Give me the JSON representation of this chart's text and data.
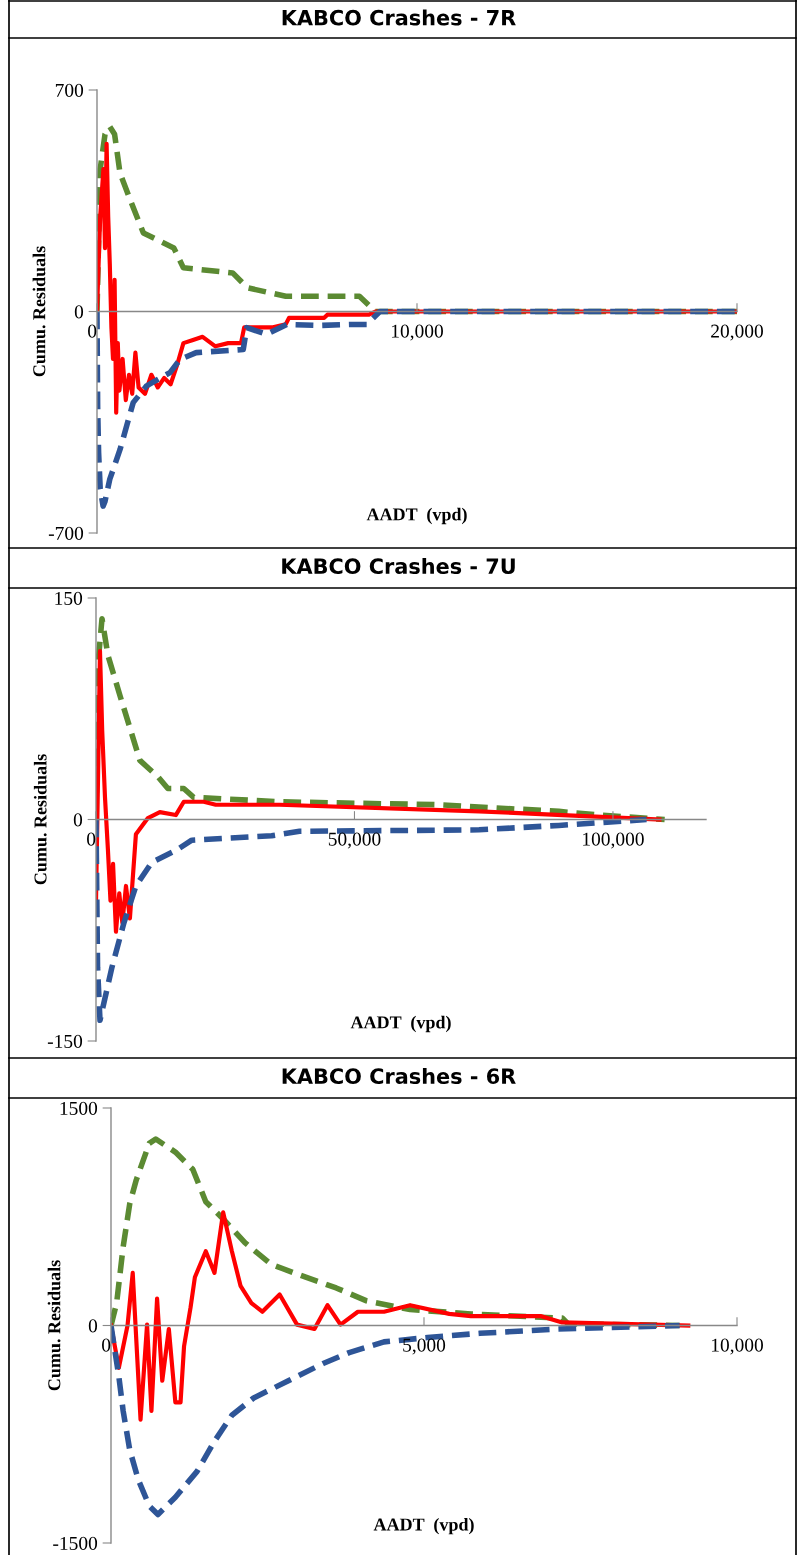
{
  "chart_data": [
    {
      "type": "line",
      "title": "KABCO Crashes - 7R",
      "xlabel": "AADT  (vpd)",
      "ylabel": "Cumu. Residuals",
      "xlim": [
        0,
        20000
      ],
      "ylim": [
        -700,
        700
      ],
      "xticks": [
        0,
        {
          "value": 10000,
          "label": "10,000"
        },
        {
          "value": 20000,
          "label": "20,000"
        }
      ],
      "yticks": [
        -700,
        0,
        700
      ],
      "grid": false,
      "series": [
        {
          "color": "#5b8a32",
          "line_style": "dashed",
          "x": [
            0,
            100,
            250,
            400,
            550,
            720,
            1080,
            1450,
            2400,
            2700,
            4240,
            4700,
            5900,
            8200,
            8700,
            20000
          ],
          "values": [
            0,
            450,
            560,
            584,
            560,
            437,
            342,
            248,
            201,
            138,
            122,
            75,
            48,
            48,
            0,
            0
          ]
        },
        {
          "color": "#ff0000",
          "line_style": "solid",
          "x": [
            0,
            100,
            200,
            250,
            300,
            350,
            400,
            450,
            500,
            550,
            600,
            650,
            700,
            800,
            900,
            1000,
            1100,
            1200,
            1300,
            1500,
            1700,
            1900,
            2100,
            2300,
            2500,
            2700,
            3000,
            3300,
            3700,
            4100,
            4500,
            4600,
            5000,
            5500,
            5900,
            6000,
            6500,
            7100,
            7200,
            8000,
            8500,
            8700,
            20000
          ],
          "values": [
            0,
            300,
            450,
            200,
            530,
            300,
            150,
            -50,
            -150,
            100,
            -320,
            -100,
            -250,
            -150,
            -280,
            -200,
            -260,
            -130,
            -240,
            -260,
            -200,
            -240,
            -210,
            -230,
            -170,
            -100,
            -90,
            -80,
            -110,
            -100,
            -100,
            -50,
            -50,
            -50,
            -40,
            -20,
            -20,
            -20,
            -10,
            -10,
            -10,
            0,
            0
          ]
        },
        {
          "color": "#2e5597",
          "line_style": "dashed",
          "x": [
            0,
            20,
            50,
            100,
            190,
            250,
            400,
            720,
            1130,
            1550,
            2280,
            2600,
            3100,
            4570,
            4680,
            5300,
            5930,
            6970,
            7900,
            8430,
            8840,
            20000
          ],
          "values": [
            0,
            -300,
            -445,
            -560,
            -615,
            -600,
            -530,
            -436,
            -288,
            -235,
            -193,
            -151,
            -130,
            -120,
            -51,
            -72,
            -41,
            -44,
            -41,
            -41,
            0,
            0
          ]
        }
      ]
    },
    {
      "type": "line",
      "title": "KABCO Crashes - 7U",
      "xlabel": "AADT  (vpd)",
      "ylabel": "Cumu. Residuals",
      "xlim": [
        0,
        118000
      ],
      "ylim": [
        -150,
        150
      ],
      "xticks": [
        0,
        {
          "value": 50000,
          "label": "50,000"
        },
        {
          "value": 100000,
          "label": "100,000"
        }
      ],
      "yticks": [
        -150,
        0,
        150
      ],
      "grid": false,
      "series": [
        {
          "color": "#5b8a32",
          "line_style": "dashed",
          "x": [
            0,
            500,
            1160,
            2320,
            4630,
            6560,
            8490,
            11970,
            13900,
            16980,
            18900,
            35500,
            66400,
            89550,
            97270,
            110000
          ],
          "values": [
            0,
            110,
            136,
            111,
            84,
            62,
            40,
            29,
            21,
            21,
            15,
            12,
            10,
            5.5,
            3,
            0
          ]
        },
        {
          "color": "#ff0000",
          "line_style": "solid",
          "x": [
            0,
            400,
            770,
            1200,
            1740,
            2300,
            2800,
            3300,
            3860,
            4500,
            5100,
            5800,
            6560,
            7720,
            10040,
            12350,
            15440,
            16980,
            20840,
            23160,
            35500,
            74100,
            109000
          ],
          "values": [
            -56,
            30,
            114,
            60,
            15,
            -20,
            -55,
            -30,
            -76,
            -50,
            -70,
            -45,
            -67,
            -10,
            1,
            5,
            3,
            12,
            12,
            10,
            10,
            5.5,
            0
          ]
        },
        {
          "color": "#2e5597",
          "line_style": "dashed",
          "x": [
            0,
            300,
            770,
            3090,
            5400,
            7720,
            10800,
            15440,
            18530,
            33970,
            39370,
            74100,
            89550,
            106500
          ],
          "values": [
            0,
            -100,
            -136,
            -100,
            -70,
            -45,
            -29,
            -21,
            -14,
            -11,
            -8,
            -7,
            -4,
            0
          ]
        }
      ]
    },
    {
      "type": "line",
      "title": "KABCO Crashes - 6R",
      "xlabel": "AADT  (vpd)",
      "ylabel": "Cumu. Residuals",
      "xlim": [
        0,
        10000
      ],
      "ylim": [
        -1500,
        1500
      ],
      "xticks": [
        0,
        {
          "value": 5000,
          "label": "5,000"
        },
        {
          "value": 10000,
          "label": "10,000"
        }
      ],
      "yticks": [
        -1500,
        0,
        1500
      ],
      "grid": false,
      "series": [
        {
          "color": "#5b8a32",
          "line_style": "dashed",
          "x": [
            0,
            90,
            194,
            299,
            403,
            611,
            715,
            1028,
            1306,
            1514,
            1792,
            2139,
            2555,
            3111,
            3597,
            4083,
            4778,
            5750,
            6444,
            7208,
            7300,
            9083
          ],
          "values": [
            0,
            155,
            542,
            839,
            1003,
            1256,
            1286,
            1196,
            1077,
            854,
            735,
            571,
            423,
            333,
            259,
            170,
            110,
            80,
            65,
            51,
            12,
            0
          ]
        },
        {
          "color": "#ff0000",
          "line_style": "solid",
          "x": [
            0,
            125,
            264,
            347,
            472,
            576,
            646,
            736,
            819,
            924,
            1028,
            1111,
            1167,
            1271,
            1340,
            1514,
            1653,
            1792,
            1931,
            2069,
            2243,
            2417,
            2694,
            2972,
            3250,
            3458,
            3667,
            3944,
            4361,
            4778,
            5403,
            5750,
            6861,
            7208,
            9222
          ],
          "values": [
            0,
            -292,
            0,
            363,
            -649,
            6,
            -589,
            185,
            -381,
            -24,
            -530,
            -530,
            -143,
            125,
            333,
            512,
            363,
            780,
            512,
            274,
            155,
            95,
            214,
            6,
            -24,
            140,
            6,
            95,
            95,
            140,
            80,
            65,
            65,
            21,
            0
          ]
        },
        {
          "color": "#2e5597",
          "line_style": "dashed",
          "x": [
            0,
            125,
            194,
            299,
            437,
            611,
            750,
            1028,
            1375,
            1653,
            1931,
            2278,
            2833,
            3389,
            3805,
            4361,
            5056,
            5889,
            7139,
            9083
          ],
          "values": [
            0,
            -351,
            -589,
            -857,
            -1065,
            -1244,
            -1303,
            -1184,
            -1006,
            -798,
            -619,
            -500,
            -381,
            -262,
            -187,
            -113,
            -83,
            -54,
            -24,
            0
          ]
        }
      ]
    }
  ]
}
